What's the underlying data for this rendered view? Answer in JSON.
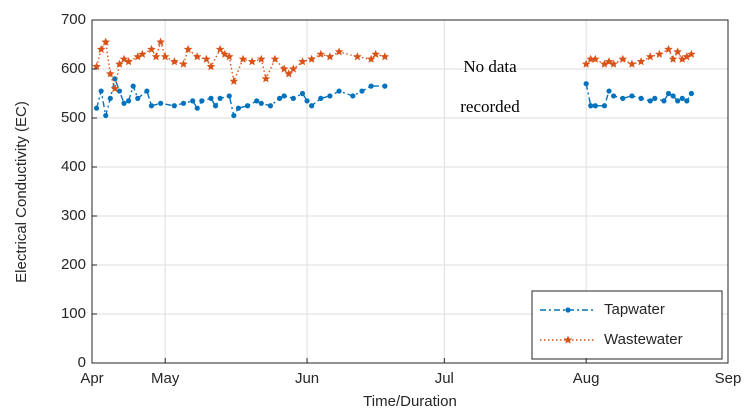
{
  "chart_data": {
    "type": "line",
    "xlabel": "Time/Duration",
    "ylabel": "Electrical Conductivity (EC)",
    "annotations": [
      "No data",
      "recorded"
    ],
    "xlim": [
      14,
      153
    ],
    "xticks": [
      {
        "value": 14,
        "label": "Apr"
      },
      {
        "value": 30,
        "label": "May"
      },
      {
        "value": 61,
        "label": "Jun"
      },
      {
        "value": 91,
        "label": "Jul"
      },
      {
        "value": 122,
        "label": "Aug"
      },
      {
        "value": 153,
        "label": "Sep"
      }
    ],
    "ylim": [
      0,
      700
    ],
    "yticks": [
      0,
      100,
      200,
      300,
      400,
      500,
      600,
      700
    ],
    "grid": true,
    "legend": "lower right",
    "series": [
      {
        "name": "Tapwater",
        "color": "#0072bd",
        "marker": "dot",
        "linestyle": "dashdot",
        "x": [
          15,
          16,
          17,
          18,
          19,
          20,
          21,
          22,
          23,
          24,
          26,
          27,
          29,
          32,
          34,
          36,
          37,
          38,
          40,
          41,
          42,
          44,
          45,
          46,
          48,
          50,
          51,
          53,
          55,
          56,
          58,
          60,
          61,
          62,
          64,
          66,
          68,
          71,
          73,
          75,
          78,
          100,
          122,
          123,
          124,
          126,
          127,
          128,
          130,
          132,
          134,
          136,
          137,
          139,
          140,
          141,
          142,
          143,
          144,
          145
        ],
        "values": [
          520,
          555,
          505,
          540,
          580,
          555,
          530,
          535,
          565,
          540,
          555,
          525,
          530,
          525,
          530,
          535,
          520,
          535,
          540,
          525,
          540,
          545,
          505,
          520,
          525,
          535,
          530,
          525,
          540,
          545,
          540,
          550,
          535,
          525,
          540,
          545,
          555,
          545,
          555,
          565,
          565,
          null,
          570,
          525,
          525,
          525,
          555,
          545,
          540,
          545,
          540,
          535,
          540,
          535,
          550,
          545,
          535,
          540,
          535,
          550
        ]
      },
      {
        "name": "Wastewater",
        "color": "#d95319",
        "marker": "star",
        "linestyle": "dotted",
        "x": [
          15,
          16,
          17,
          18,
          19,
          20,
          21,
          22,
          24,
          25,
          27,
          28,
          29,
          30,
          32,
          34,
          35,
          37,
          39,
          40,
          42,
          43,
          44,
          45,
          47,
          49,
          51,
          52,
          54,
          56,
          57,
          58,
          60,
          62,
          64,
          66,
          68,
          72,
          75,
          76,
          78,
          100,
          122,
          123,
          124,
          126,
          127,
          128,
          130,
          132,
          134,
          136,
          138,
          140,
          141,
          142,
          143,
          144,
          145
        ],
        "values": [
          605,
          640,
          655,
          590,
          560,
          610,
          620,
          615,
          625,
          630,
          640,
          625,
          655,
          625,
          615,
          610,
          640,
          625,
          620,
          605,
          640,
          630,
          625,
          575,
          620,
          615,
          620,
          580,
          620,
          600,
          590,
          600,
          615,
          620,
          630,
          625,
          635,
          625,
          620,
          630,
          625,
          null,
          610,
          620,
          620,
          610,
          615,
          610,
          620,
          610,
          615,
          625,
          630,
          640,
          620,
          635,
          620,
          625,
          630
        ]
      }
    ]
  }
}
